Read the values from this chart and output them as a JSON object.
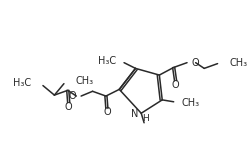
{
  "bg_color": "#ffffff",
  "line_color": "#2a2a2a",
  "line_width": 1.1,
  "font_size": 7.0,
  "fig_width": 2.48,
  "fig_height": 1.53,
  "dpi": 100,
  "N1": [
    148,
    42
  ],
  "C2": [
    170,
    55
  ],
  "C3": [
    165,
    80
  ],
  "C4": [
    140,
    82
  ],
  "C5": [
    127,
    58
  ]
}
